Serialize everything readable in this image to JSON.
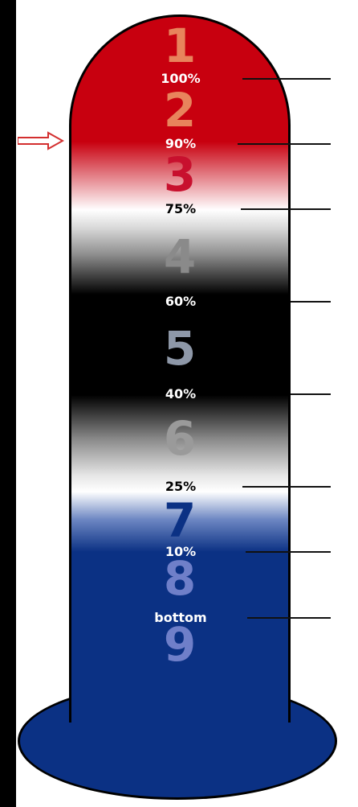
{
  "levels": [
    {
      "label": "100%",
      "color": "#ffffff"
    },
    {
      "label": "90%",
      "color": "#ffffff"
    },
    {
      "label": "75%",
      "color": "#000000"
    },
    {
      "label": "60%",
      "color": "#ffffff"
    },
    {
      "label": "40%",
      "color": "#ffffff"
    },
    {
      "label": "25%",
      "color": "#000000"
    },
    {
      "label": "10%",
      "color": "#ffffff"
    },
    {
      "label": "bottom",
      "color": "#ffffff"
    }
  ],
  "zones": [
    {
      "number": "1",
      "color": "#e8845c"
    },
    {
      "number": "2",
      "color": "#e8845c"
    },
    {
      "number": "3",
      "color": "#c8102e"
    },
    {
      "number": "4",
      "color": "#8a8a8a"
    },
    {
      "number": "5",
      "color": "#8e98a8"
    },
    {
      "number": "6",
      "color": "#9a9a9a"
    },
    {
      "number": "7",
      "color": "#0b3184"
    },
    {
      "number": "8",
      "color": "#6f7fc9"
    },
    {
      "number": "9",
      "color": "#6f7fc9"
    }
  ],
  "marker": {
    "color": "#d32f2f"
  },
  "colors": {
    "red": "#c8000f",
    "blue": "#0b3184",
    "black": "#000000",
    "white": "#ffffff"
  }
}
